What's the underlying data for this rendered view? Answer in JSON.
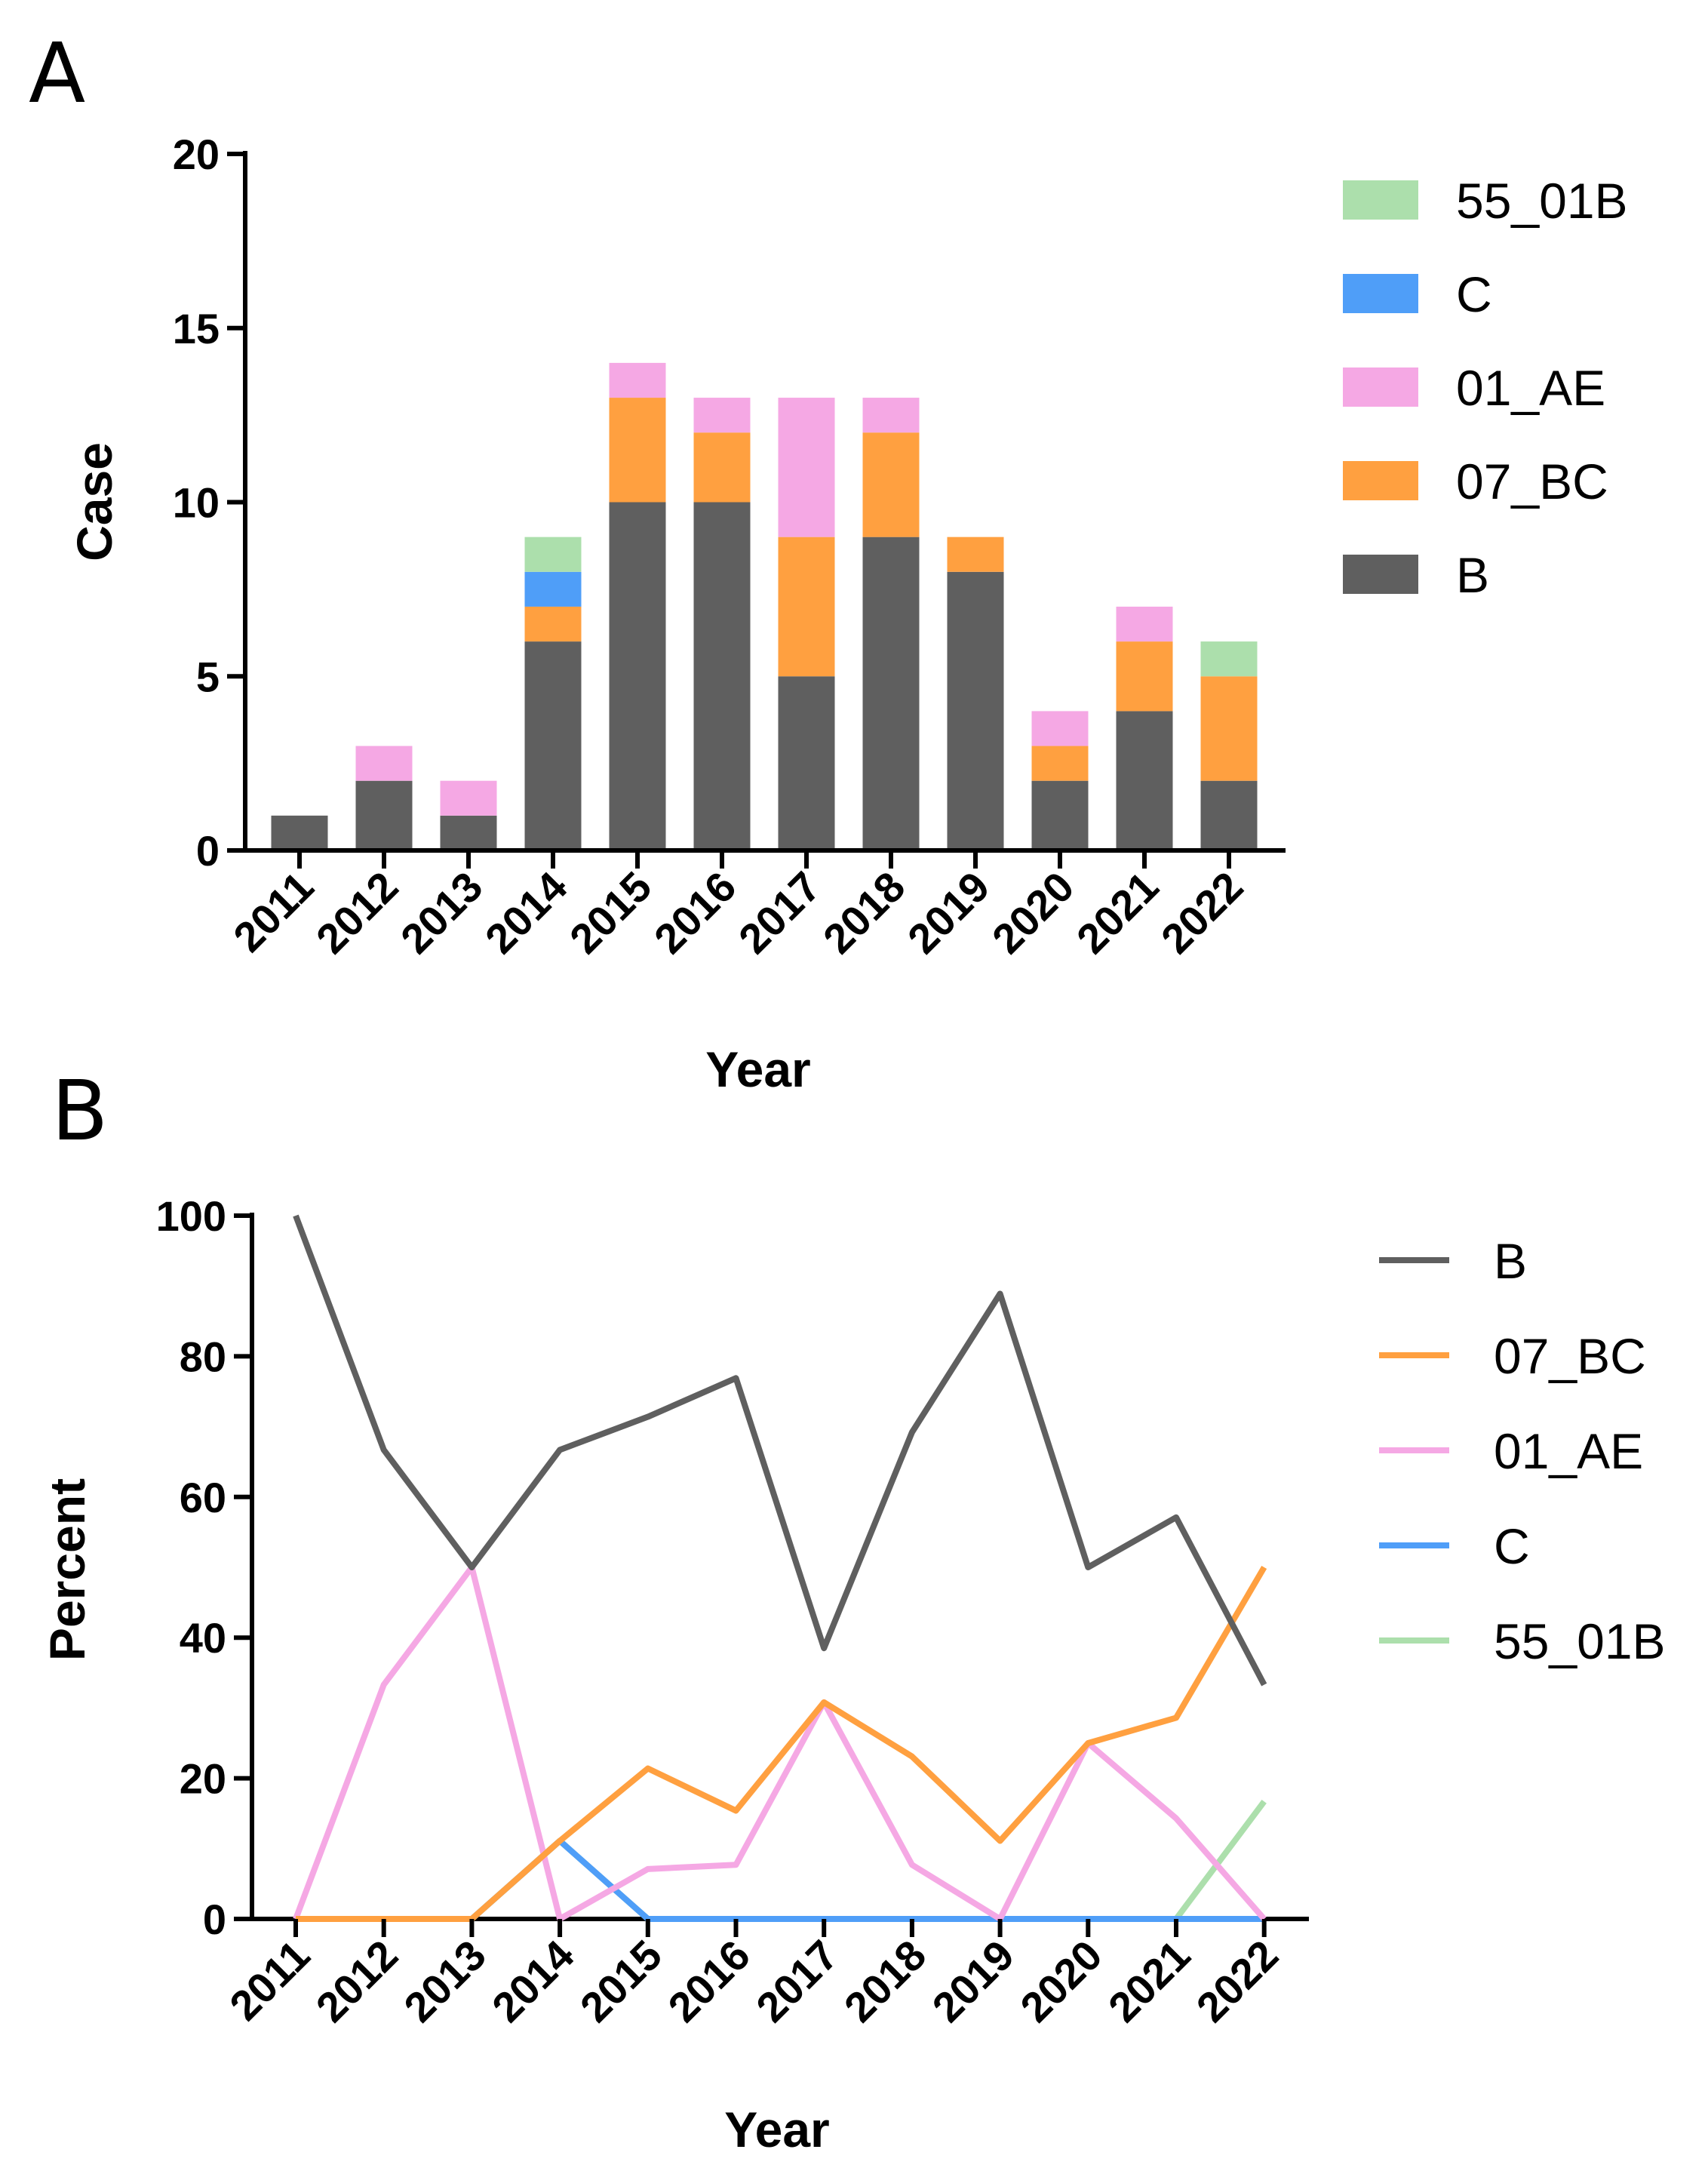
{
  "colors": {
    "B": "#5f5f5f",
    "07_BC": "#ffa040",
    "01_AE": "#f5a8e4",
    "C": "#4f9ef8",
    "55_01B": "#acdfac"
  },
  "chart_data": [
    {
      "panel_label": "A",
      "type": "bar",
      "stacked": true,
      "xlabel": "Year",
      "ylabel": "Case",
      "ylim": [
        0,
        20
      ],
      "yticks": [
        0,
        5,
        10,
        15,
        20
      ],
      "legend_position": "right",
      "legend_order": [
        "55_01B",
        "C",
        "01_AE",
        "07_BC",
        "B"
      ],
      "categories": [
        "2011",
        "2012",
        "2013",
        "2014",
        "2015",
        "2016",
        "2017",
        "2018",
        "2019",
        "2020",
        "2021",
        "2022"
      ],
      "series": [
        {
          "name": "B",
          "values": [
            1,
            2,
            1,
            6,
            10,
            10,
            5,
            9,
            8,
            2,
            4,
            2
          ]
        },
        {
          "name": "07_BC",
          "values": [
            0,
            0,
            0,
            1,
            3,
            2,
            4,
            3,
            1,
            1,
            2,
            3
          ]
        },
        {
          "name": "01_AE",
          "values": [
            0,
            1,
            1,
            0,
            1,
            1,
            4,
            1,
            0,
            1,
            1,
            0
          ]
        },
        {
          "name": "C",
          "values": [
            0,
            0,
            0,
            1,
            0,
            0,
            0,
            0,
            0,
            0,
            0,
            0
          ]
        },
        {
          "name": "55_01B",
          "values": [
            0,
            0,
            0,
            1,
            0,
            0,
            0,
            0,
            0,
            0,
            0,
            1
          ]
        }
      ]
    },
    {
      "panel_label": "B",
      "type": "line",
      "xlabel": "Year",
      "ylabel": "Percent",
      "ylim": [
        0,
        100
      ],
      "yticks": [
        0,
        20,
        40,
        60,
        80,
        100
      ],
      "legend_position": "right",
      "legend_order": [
        "B",
        "07_BC",
        "01_AE",
        "C",
        "55_01B"
      ],
      "categories": [
        "2011",
        "2012",
        "2013",
        "2014",
        "2015",
        "2016",
        "2017",
        "2018",
        "2019",
        "2020",
        "2021",
        "2022"
      ],
      "series": [
        {
          "name": "55_01B",
          "values": [
            0,
            0,
            0,
            11.1,
            0,
            0,
            0,
            0,
            0,
            0,
            0,
            16.7
          ]
        },
        {
          "name": "C",
          "values": [
            0,
            0,
            0,
            11.1,
            0,
            0,
            0,
            0,
            0,
            0,
            0,
            0
          ]
        },
        {
          "name": "01_AE",
          "values": [
            0,
            33.3,
            50,
            0,
            7.1,
            7.7,
            30.8,
            7.7,
            0,
            25,
            14.3,
            0
          ]
        },
        {
          "name": "07_BC",
          "values": [
            0,
            0,
            0,
            11.1,
            21.4,
            15.4,
            30.8,
            23.1,
            11.1,
            25,
            28.6,
            50
          ]
        },
        {
          "name": "B",
          "values": [
            100,
            66.7,
            50,
            66.7,
            71.4,
            76.9,
            38.5,
            69.2,
            88.9,
            50,
            57.1,
            33.3
          ]
        }
      ]
    }
  ]
}
